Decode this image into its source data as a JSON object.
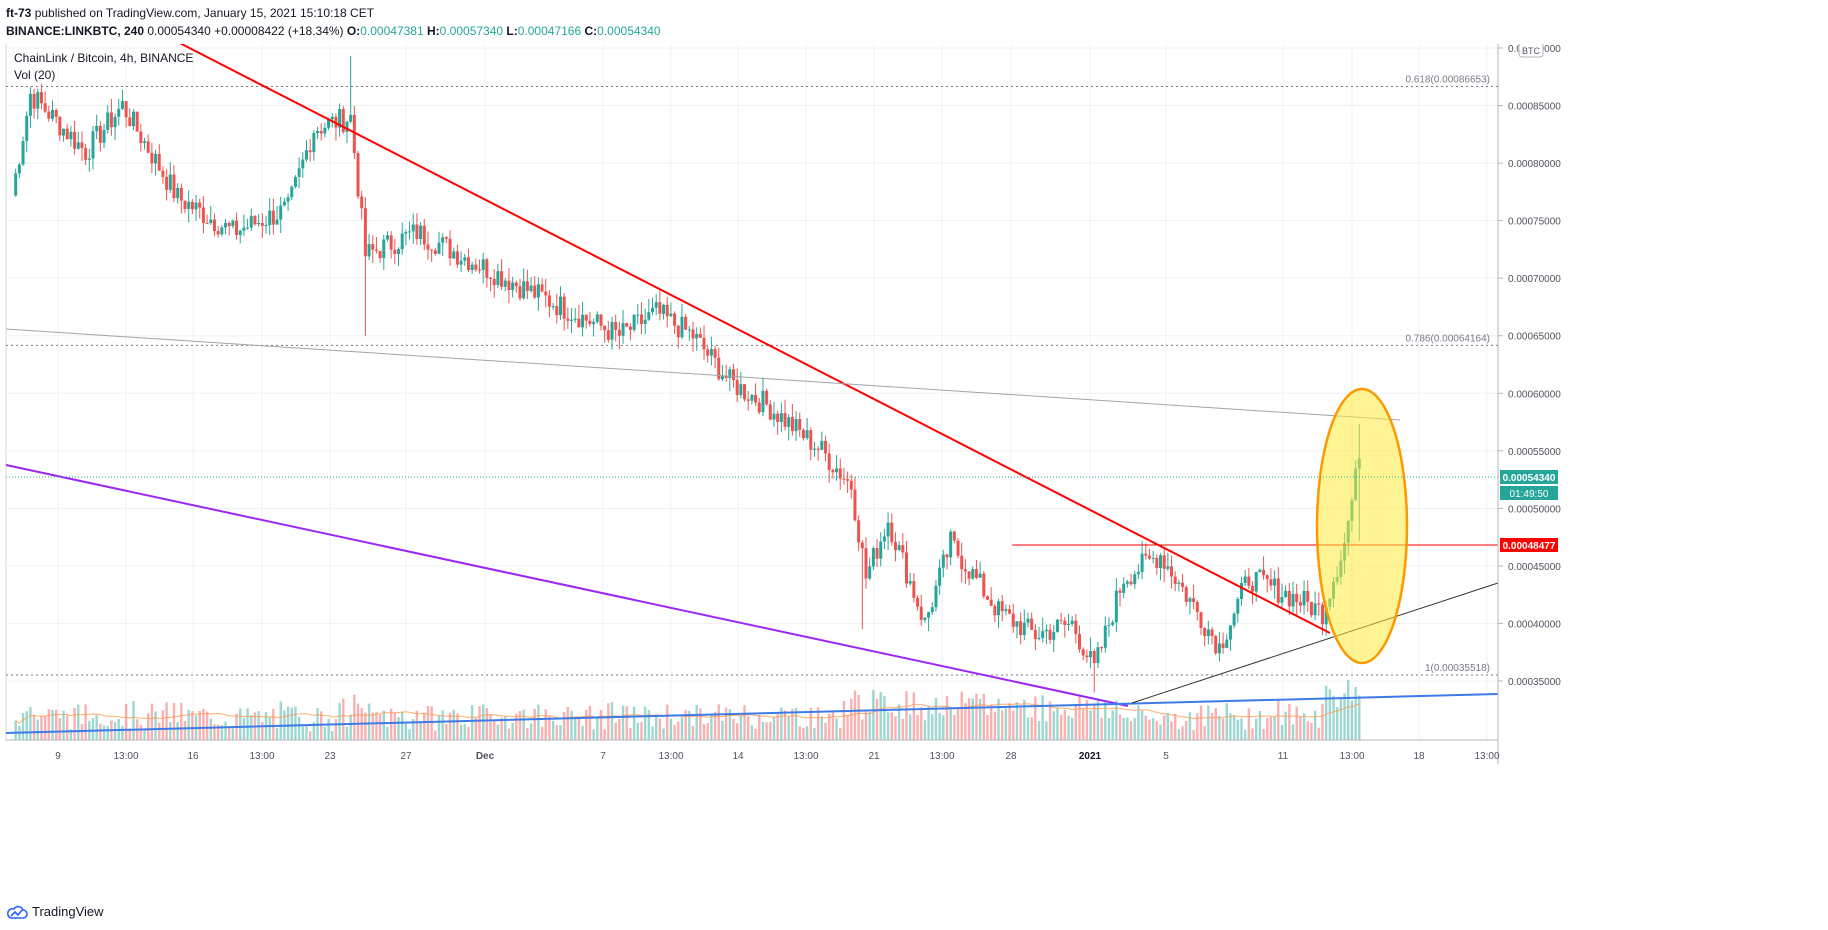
{
  "header": {
    "line1_user": "ft-73",
    "line1_rest": "published on TradingView.com, January 15, 2021 15:10:18 CET",
    "symbol": "BINANCE:LINKBTC, 240",
    "last": "0.00054340",
    "change": "+0.00008422 (+18.34%)",
    "o_label": "O:",
    "o_value": "0.00047381",
    "h_label": "H:",
    "h_value": "0.00057340",
    "l_label": "L:",
    "l_value": "0.00047166",
    "c_label": "C:",
    "c_value": "0.00054340"
  },
  "overlay": {
    "title": "ChainLink / Bitcoin, 4h, BINANCE",
    "volume_label": "Vol (20)",
    "currency_badge": "BTC"
  },
  "fib_labels": {
    "f618": "0.618(0.00086653)",
    "f786": "0.786(0.00064164)",
    "f1": "1(0.00035518)"
  },
  "price_tags": {
    "last_price": "0.00054340",
    "countdown": "01:49:50",
    "level": "0.00048477"
  },
  "footer": {
    "brand": "TradingView"
  },
  "colors": {
    "up": "#26a69a",
    "down": "#ef5350",
    "red_line": "#ff0000",
    "purple_line": "#9c27f0",
    "blue_line": "#3d7be8",
    "ellipse_fill": "#ffeb3b",
    "ellipse_stroke": "#ff9800"
  },
  "chart_data": {
    "type": "candlestick",
    "title": "ChainLink / Bitcoin, 4h, BINANCE",
    "yaxis_ticks": [
      "0.00090000",
      "0.00085000",
      "0.00080000",
      "0.00075000",
      "0.00070000",
      "0.00065000",
      "0.00060000",
      "0.00055000",
      "0.00050000",
      "0.00045000",
      "0.00040000",
      "0.00035000"
    ],
    "xaxis_ticks": [
      "9",
      "13:00",
      "16",
      "13:00",
      "23",
      "27",
      "Dec",
      "7",
      "13:00",
      "14",
      "13:00",
      "21",
      "13:00",
      "28",
      "2021",
      "5",
      "11",
      "13:00",
      "18",
      "13:00"
    ],
    "ylim": [
      0.00031,
      0.00092
    ],
    "price_path_anchors": [
      {
        "x": 0,
        "y": 0.000772
      },
      {
        "x": 5,
        "y": 0.00086
      },
      {
        "x": 20,
        "y": 0.00081
      },
      {
        "x": 30,
        "y": 0.00085
      },
      {
        "x": 45,
        "y": 0.00077
      },
      {
        "x": 60,
        "y": 0.00074
      },
      {
        "x": 75,
        "y": 0.00076
      },
      {
        "x": 82,
        "y": 0.00083
      },
      {
        "x": 92,
        "y": 0.00084
      },
      {
        "x": 96,
        "y": 0.00072
      },
      {
        "x": 110,
        "y": 0.00074
      },
      {
        "x": 140,
        "y": 0.00069
      },
      {
        "x": 165,
        "y": 0.00065
      },
      {
        "x": 175,
        "y": 0.00067
      },
      {
        "x": 185,
        "y": 0.00065
      },
      {
        "x": 195,
        "y": 0.00061
      },
      {
        "x": 205,
        "y": 0.00059
      },
      {
        "x": 220,
        "y": 0.00055
      },
      {
        "x": 228,
        "y": 0.00052
      },
      {
        "x": 232,
        "y": 0.00044
      },
      {
        "x": 238,
        "y": 0.00049
      },
      {
        "x": 248,
        "y": 0.0004
      },
      {
        "x": 255,
        "y": 0.00047
      },
      {
        "x": 268,
        "y": 0.00041
      },
      {
        "x": 278,
        "y": 0.00039
      },
      {
        "x": 288,
        "y": 0.0004
      },
      {
        "x": 294,
        "y": 0.00036
      },
      {
        "x": 302,
        "y": 0.00044
      },
      {
        "x": 312,
        "y": 0.00046
      },
      {
        "x": 322,
        "y": 0.00041
      },
      {
        "x": 328,
        "y": 0.00038
      },
      {
        "x": 336,
        "y": 0.00044
      },
      {
        "x": 350,
        "y": 0.00042
      },
      {
        "x": 356,
        "y": 0.00041
      },
      {
        "x": 362,
        "y": 0.00047
      },
      {
        "x": 366,
        "y": 0.000543
      }
    ],
    "fib_levels": [
      {
        "label": "0.618",
        "value": 0.00086653
      },
      {
        "label": "0.786",
        "value": 0.00064164
      },
      {
        "label": "1",
        "value": 0.00035518
      }
    ],
    "horizontal_level": 0.00048477,
    "last_close": 0.0005434
  }
}
